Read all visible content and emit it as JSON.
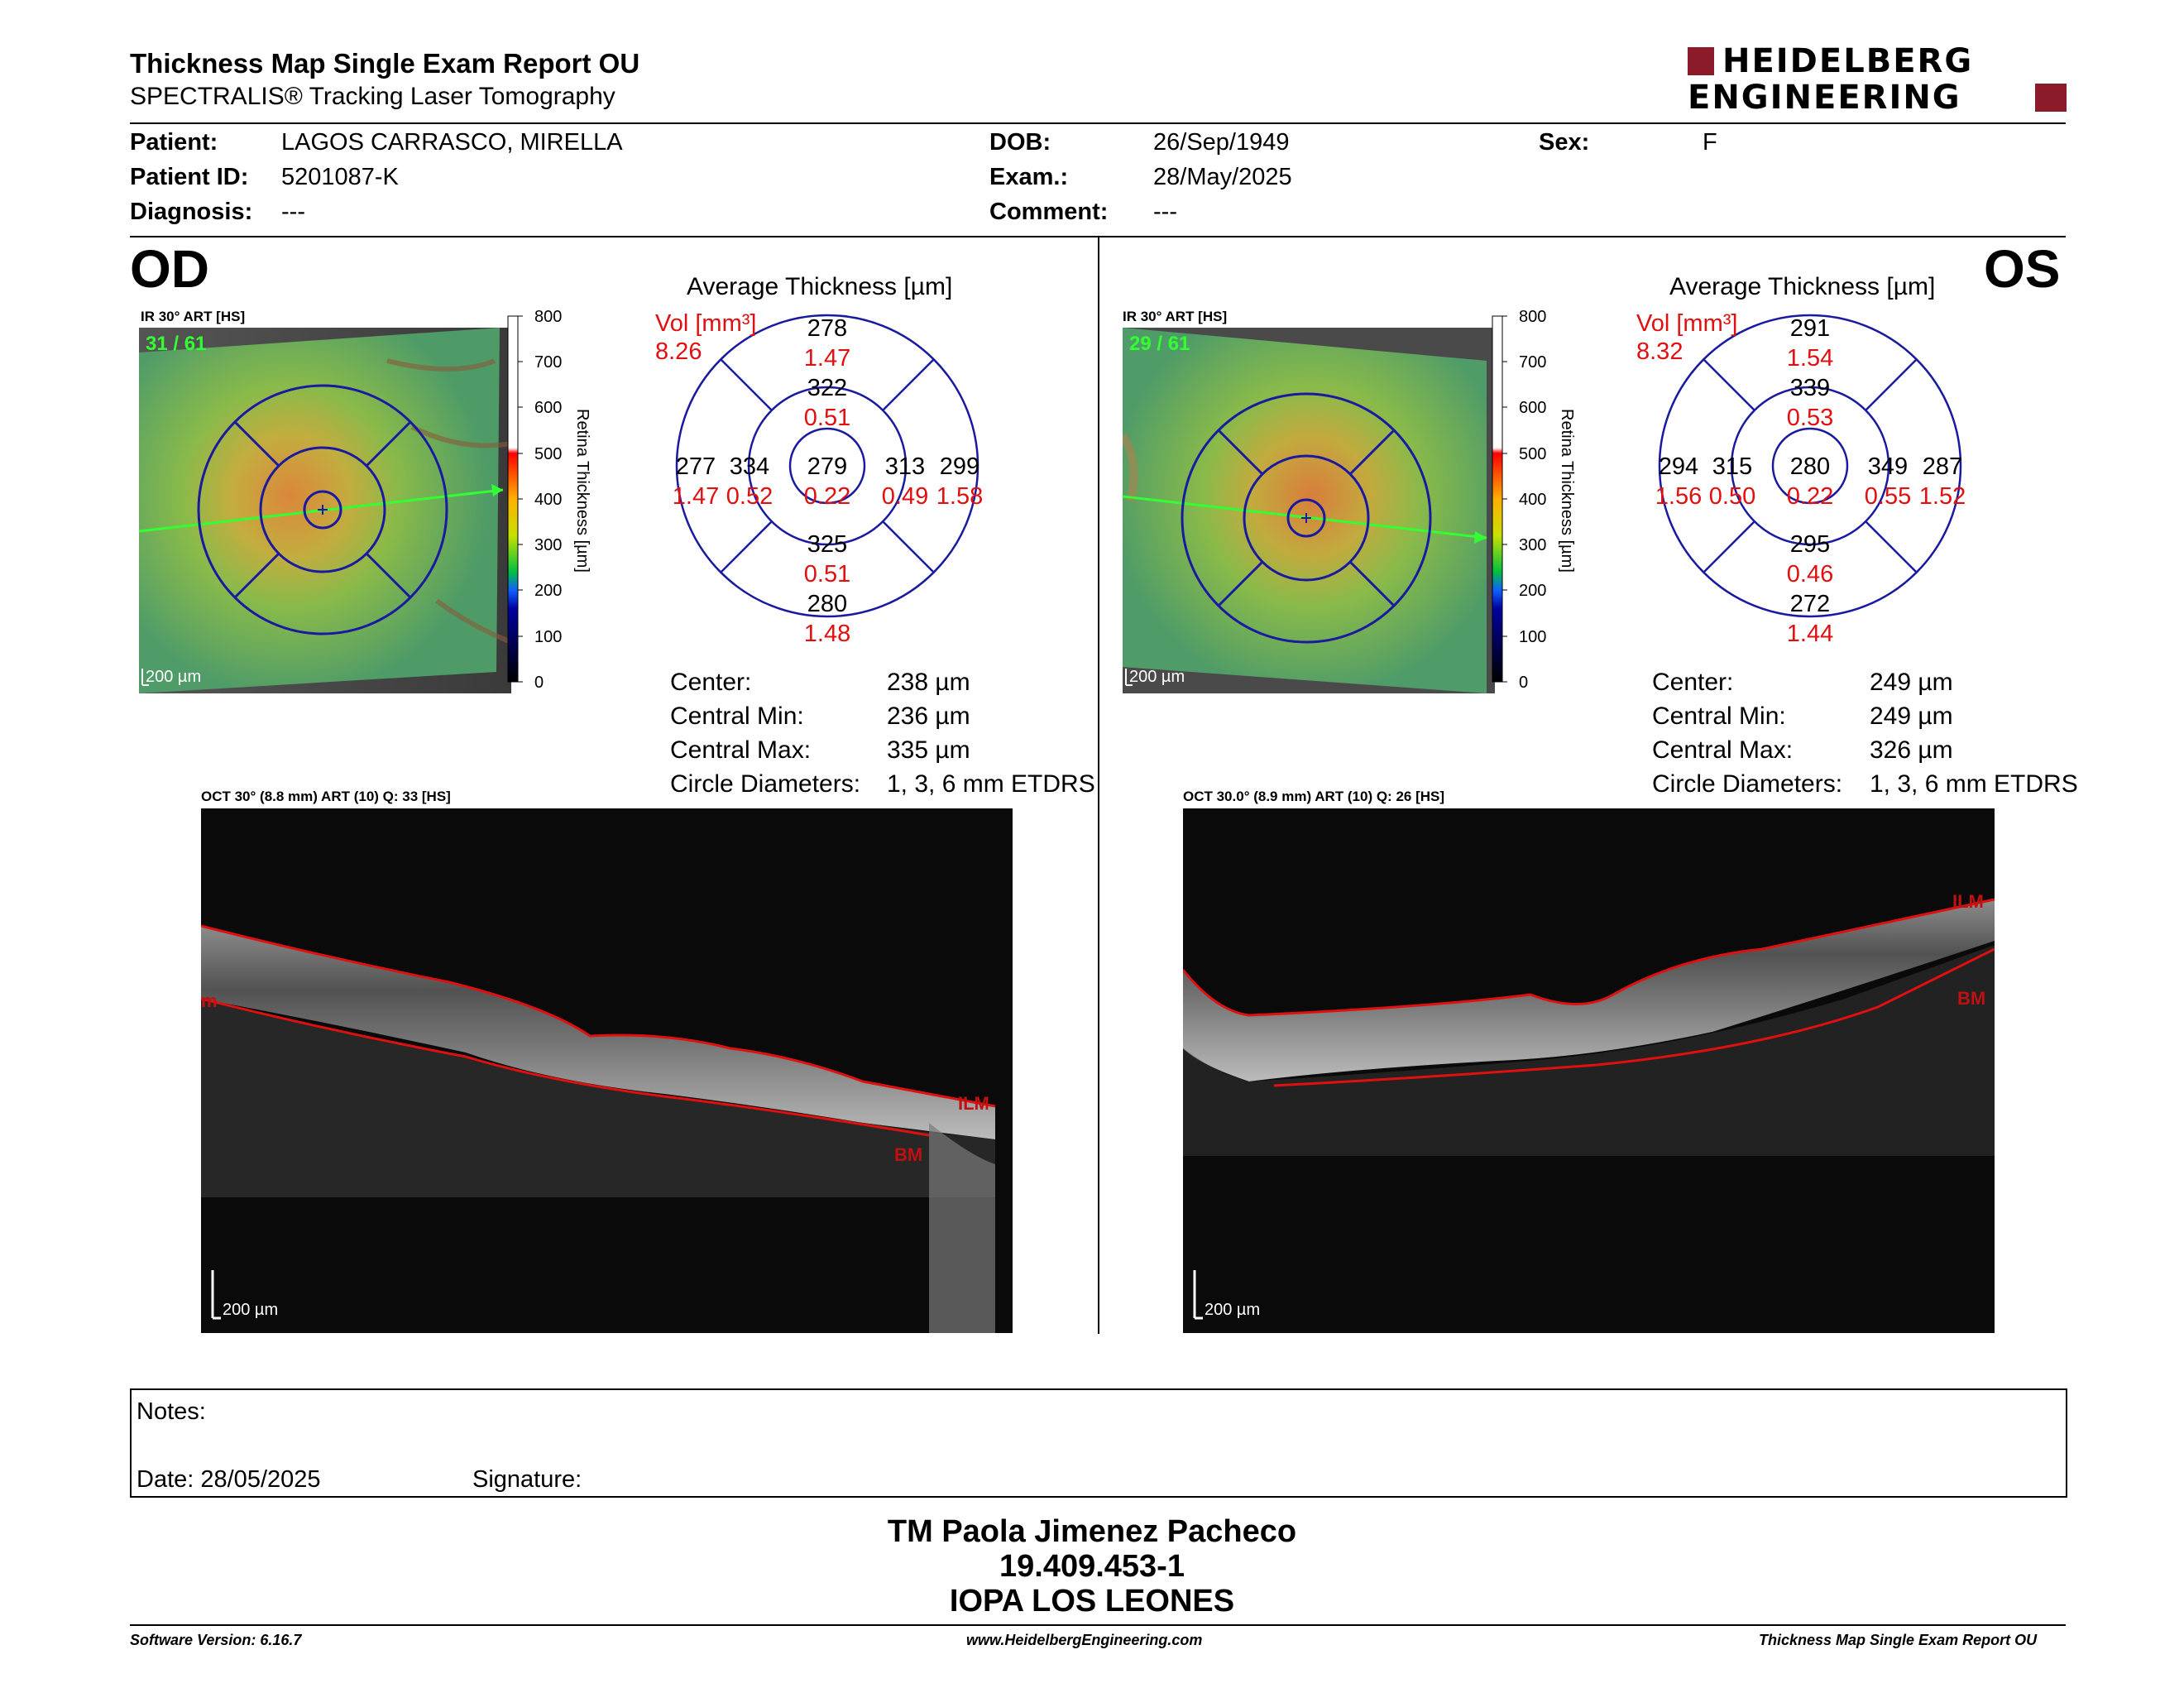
{
  "header": {
    "title": "Thickness Map Single Exam Report OU",
    "subtitle": "SPECTRALIS® Tracking Laser Tomography",
    "logo_line1": "HEIDELBERG",
    "logo_line2": "ENGINEERING"
  },
  "patient": {
    "patient_label": "Patient:",
    "patient_value": "LAGOS CARRASCO, MIRELLA",
    "id_label": "Patient ID:",
    "id_value": "5201087-K",
    "diagnosis_label": "Diagnosis:",
    "diagnosis_value": "---",
    "dob_label": "DOB:",
    "dob_value": "26/Sep/1949",
    "exam_label": "Exam.:",
    "exam_value": "28/May/2025",
    "comment_label": "Comment:",
    "comment_value": "---",
    "sex_label": "Sex:",
    "sex_value": "F"
  },
  "od": {
    "eye": "OD",
    "ir_label": "IR 30° ART [HS]",
    "frames": "31 / 61",
    "scale": "200 µm",
    "oct_label": "OCT 30° (8.8 mm) ART (10) Q: 33 [HS]",
    "oct_scale": "200 µm",
    "ilm": "ILM",
    "bm": "BM",
    "left_edge_label": "m",
    "avg_title": "Average Thickness [µm]",
    "vol_label": "Vol [mm³]",
    "vol_value": "8.26",
    "grid": {
      "sup_out_t": "278",
      "sup_out_v": "1.47",
      "sup_in_t": "322",
      "sup_in_v": "0.51",
      "tmp_out_t": "277",
      "tmp_out_v": "1.47",
      "tmp_in_t": "334",
      "tmp_in_v": "0.52",
      "center_t": "279",
      "center_v": "0.22",
      "nas_in_t": "313",
      "nas_in_v": "0.49",
      "nas_out_t": "299",
      "nas_out_v": "1.58",
      "inf_in_t": "325",
      "inf_in_v": "0.51",
      "inf_out_t": "280",
      "inf_out_v": "1.48"
    },
    "stats": {
      "center_label": "Center:",
      "center_value": "238 µm",
      "min_label": "Central Min:",
      "min_value": "236 µm",
      "max_label": "Central Max:",
      "max_value": "335 µm",
      "diam_label": "Circle Diameters:",
      "diam_value": "1, 3, 6 mm ETDRS"
    }
  },
  "os": {
    "eye": "OS",
    "ir_label": "IR 30° ART [HS]",
    "frames": "29 / 61",
    "scale": "200 µm",
    "oct_label": "OCT 30.0° (8.9 mm) ART (10) Q: 26 [HS]",
    "oct_scale": "200 µm",
    "ilm": "ILM",
    "bm": "BM",
    "avg_title": "Average Thickness [µm]",
    "vol_label": "Vol [mm³]",
    "vol_value": "8.32",
    "grid": {
      "sup_out_t": "291",
      "sup_out_v": "1.54",
      "sup_in_t": "339",
      "sup_in_v": "0.53",
      "tmp_out_t": "294",
      "tmp_out_v": "1.56",
      "tmp_in_t": "315",
      "tmp_in_v": "0.50",
      "center_t": "280",
      "center_v": "0.22",
      "nas_in_t": "349",
      "nas_in_v": "0.55",
      "nas_out_t": "287",
      "nas_out_v": "1.52",
      "inf_in_t": "295",
      "inf_in_v": "0.46",
      "inf_out_t": "272",
      "inf_out_v": "1.44"
    },
    "stats": {
      "center_label": "Center:",
      "center_value": "249 µm",
      "min_label": "Central Min:",
      "min_value": "249 µm",
      "max_label": "Central Max:",
      "max_value": "326 µm",
      "diam_label": "Circle Diameters:",
      "diam_value": "1, 3, 6 mm ETDRS"
    }
  },
  "colorbar": {
    "title": "Retina Thickness [µm]",
    "ticks": [
      "800",
      "700",
      "600",
      "500",
      "400",
      "300",
      "200",
      "100",
      "0"
    ]
  },
  "notes": {
    "notes_label": "Notes:",
    "date_label": "Date: 28/05/2025",
    "signature_label": "Signature:"
  },
  "signature_block": {
    "name": "TM Paola Jimenez Pacheco",
    "rut": "19.409.453-1",
    "place": "IOPA LOS LEONES"
  },
  "footer": {
    "version": "Software Version: 6.16.7",
    "website": "www.HeidelbergEngineering.com",
    "report": "Thickness Map Single Exam Report OU"
  },
  "colors": {
    "brand_red": "#8b1a2b",
    "value_red": "#e01010",
    "ring_blue": "#1a1aa0",
    "frame_green": "#2ecc2e"
  }
}
